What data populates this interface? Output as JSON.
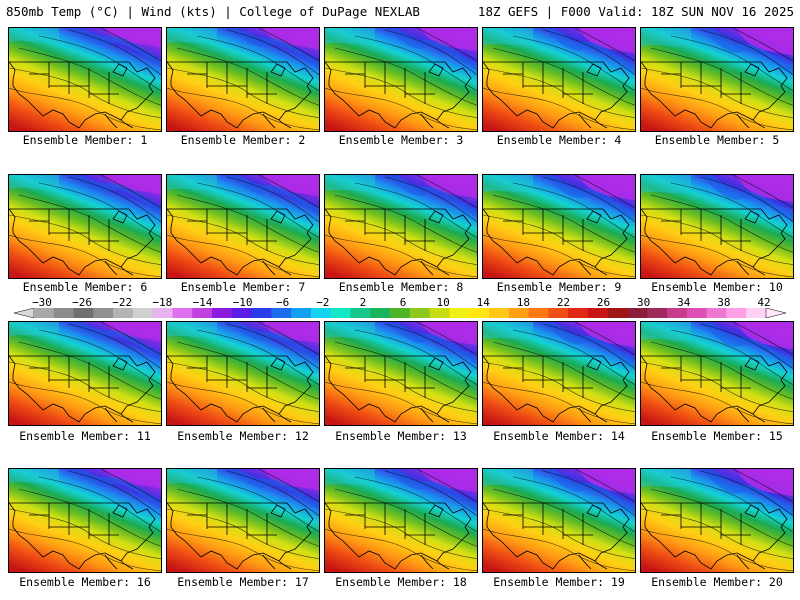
{
  "header": {
    "title_left": "850mb Temp (°C) | Wind (kts) | College of DuPage NEXLAB",
    "title_right": "18Z GEFS | F000 Valid: 18Z SUN NOV 16 2025"
  },
  "members": [
    {
      "label": "Ensemble Member: 1"
    },
    {
      "label": "Ensemble Member: 2"
    },
    {
      "label": "Ensemble Member: 3"
    },
    {
      "label": "Ensemble Member: 4"
    },
    {
      "label": "Ensemble Member: 5"
    },
    {
      "label": "Ensemble Member: 6"
    },
    {
      "label": "Ensemble Member: 7"
    },
    {
      "label": "Ensemble Member: 8"
    },
    {
      "label": "Ensemble Member: 9"
    },
    {
      "label": "Ensemble Member: 10"
    },
    {
      "label": "Ensemble Member: 11"
    },
    {
      "label": "Ensemble Member: 12"
    },
    {
      "label": "Ensemble Member: 13"
    },
    {
      "label": "Ensemble Member: 14"
    },
    {
      "label": "Ensemble Member: 15"
    },
    {
      "label": "Ensemble Member: 16"
    },
    {
      "label": "Ensemble Member: 17"
    },
    {
      "label": "Ensemble Member: 18"
    },
    {
      "label": "Ensemble Member: 19"
    },
    {
      "label": "Ensemble Member: 20"
    }
  ],
  "colorbar": {
    "labels": [
      "-30",
      "-26",
      "-22",
      "-18",
      "-14",
      "-10",
      "-6",
      "-2",
      "2",
      "6",
      "10",
      "14",
      "18",
      "22",
      "26",
      "30",
      "34",
      "38",
      "42"
    ],
    "colors": [
      "#a8a8a8",
      "#8c8c8c",
      "#707070",
      "#909090",
      "#b4b4b4",
      "#d0d0d0",
      "#e8b4f0",
      "#e070f0",
      "#c040e0",
      "#8c1ce0",
      "#5a1ee6",
      "#2a3ce8",
      "#1c6cf0",
      "#14a0f0",
      "#14d2f0",
      "#14e6c8",
      "#14c88c",
      "#1cb45a",
      "#50b428",
      "#8cc81e",
      "#c8dc14",
      "#f0f014",
      "#ffe614",
      "#ffc814",
      "#ffa014",
      "#ff7814",
      "#f05014",
      "#e02814",
      "#c81414",
      "#a01414",
      "#8c1e3c",
      "#a0285a",
      "#c83c8c",
      "#e050b4",
      "#f078d2",
      "#ffa0e6",
      "#ffd2f5"
    ]
  }
}
